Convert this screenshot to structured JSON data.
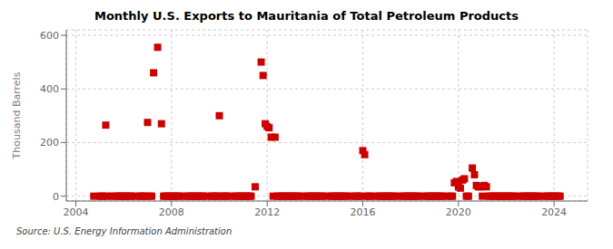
{
  "chart_data": {
    "type": "scatter",
    "title": "Monthly U.S. Exports to Mauritania of Total Petroleum Products",
    "y_label": "Thousand Barrels",
    "annotations": [
      "Source: U.S. Energy Information Administration"
    ],
    "color": "#cc0000",
    "marker": "square",
    "grid": true,
    "xlim": [
      2003.6,
      2025.4
    ],
    "xticks": [
      2004,
      2008,
      2012,
      2016,
      2020,
      2024
    ],
    "ylim": [
      -18,
      620
    ],
    "yticks": [
      0,
      200,
      400,
      600
    ],
    "x": [
      2004.75,
      2005.0,
      2005.08,
      2005.17,
      2005.25,
      2005.33,
      2005.5,
      2005.67,
      2005.75,
      2005.83,
      2005.92,
      2006.0,
      2006.08,
      2006.17,
      2006.25,
      2006.33,
      2006.5,
      2006.67,
      2006.75,
      2006.83,
      2006.92,
      2007.0,
      2007.08,
      2007.17,
      2007.25,
      2007.42,
      2007.58,
      2007.67,
      2007.75,
      2007.83,
      2007.92,
      2008.0,
      2008.08,
      2008.17,
      2008.25,
      2008.33,
      2008.5,
      2008.67,
      2008.75,
      2008.83,
      2008.92,
      2009.0,
      2009.08,
      2009.17,
      2009.25,
      2009.33,
      2009.5,
      2009.67,
      2009.75,
      2009.83,
      2009.92,
      2010.0,
      2010.08,
      2010.17,
      2010.25,
      2010.33,
      2010.5,
      2010.67,
      2010.75,
      2010.83,
      2010.92,
      2011.0,
      2011.08,
      2011.17,
      2011.25,
      2011.33,
      2011.5,
      2011.75,
      2011.83,
      2011.92,
      2012.0,
      2012.08,
      2012.17,
      2012.25,
      2012.33,
      2012.42,
      2012.5,
      2012.58,
      2012.67,
      2012.75,
      2012.83,
      2012.92,
      2013.0,
      2013.08,
      2013.17,
      2013.25,
      2013.33,
      2013.5,
      2013.67,
      2013.75,
      2013.83,
      2013.92,
      2014.0,
      2014.08,
      2014.17,
      2014.25,
      2014.33,
      2014.5,
      2014.67,
      2014.75,
      2014.83,
      2014.92,
      2015.0,
      2015.08,
      2015.17,
      2015.25,
      2015.33,
      2015.5,
      2015.67,
      2015.75,
      2015.83,
      2015.92,
      2016.0,
      2016.08,
      2016.17,
      2016.25,
      2016.33,
      2016.5,
      2016.67,
      2016.75,
      2016.83,
      2016.92,
      2017.0,
      2017.08,
      2017.17,
      2017.25,
      2017.33,
      2017.5,
      2017.67,
      2017.75,
      2017.83,
      2017.92,
      2018.0,
      2018.08,
      2018.17,
      2018.25,
      2018.33,
      2018.5,
      2018.67,
      2018.75,
      2018.83,
      2018.92,
      2019.0,
      2019.08,
      2019.17,
      2019.25,
      2019.33,
      2019.5,
      2019.67,
      2019.75,
      2019.83,
      2019.92,
      2020.0,
      2020.08,
      2020.17,
      2020.25,
      2020.33,
      2020.42,
      2020.58,
      2020.67,
      2020.75,
      2020.83,
      2020.92,
      2021.0,
      2021.08,
      2021.17,
      2021.25,
      2021.33,
      2021.42,
      2021.5,
      2021.58,
      2021.67,
      2021.75,
      2021.83,
      2021.92,
      2022.0,
      2022.08,
      2022.17,
      2022.25,
      2022.33,
      2022.5,
      2022.67,
      2022.75,
      2022.83,
      2022.92,
      2023.0,
      2023.08,
      2023.17,
      2023.25,
      2023.33,
      2023.5,
      2023.67,
      2023.75,
      2023.83,
      2023.92,
      2024.0,
      2024.08,
      2024.17,
      2024.25
    ],
    "values": [
      0,
      0,
      0,
      0,
      265,
      0,
      0,
      0,
      0,
      0,
      0,
      0,
      0,
      0,
      0,
      0,
      0,
      0,
      0,
      0,
      0,
      275,
      0,
      0,
      460,
      555,
      270,
      0,
      0,
      0,
      0,
      0,
      0,
      0,
      0,
      0,
      0,
      0,
      0,
      0,
      0,
      0,
      0,
      0,
      0,
      0,
      0,
      0,
      0,
      0,
      0,
      300,
      0,
      0,
      0,
      0,
      0,
      0,
      0,
      0,
      0,
      0,
      0,
      0,
      0,
      0,
      35,
      500,
      450,
      270,
      260,
      255,
      220,
      0,
      220,
      0,
      0,
      0,
      0,
      0,
      0,
      0,
      0,
      0,
      0,
      0,
      0,
      0,
      0,
      0,
      0,
      0,
      0,
      0,
      0,
      0,
      0,
      0,
      0,
      0,
      0,
      0,
      0,
      0,
      0,
      0,
      0,
      0,
      0,
      0,
      0,
      0,
      170,
      155,
      0,
      0,
      0,
      0,
      0,
      0,
      0,
      0,
      0,
      0,
      0,
      0,
      0,
      0,
      0,
      0,
      0,
      0,
      0,
      0,
      0,
      0,
      0,
      0,
      0,
      0,
      0,
      0,
      0,
      0,
      0,
      0,
      0,
      0,
      0,
      0,
      50,
      55,
      35,
      30,
      60,
      65,
      0,
      0,
      105,
      80,
      40,
      35,
      35,
      0,
      40,
      35,
      0,
      0,
      0,
      0,
      0,
      0,
      0,
      0,
      0,
      0,
      0,
      0,
      0,
      0,
      0,
      0,
      0,
      0,
      0,
      0,
      0,
      0,
      0,
      0,
      0,
      0,
      0,
      0,
      0,
      0,
      0,
      0,
      0
    ]
  }
}
